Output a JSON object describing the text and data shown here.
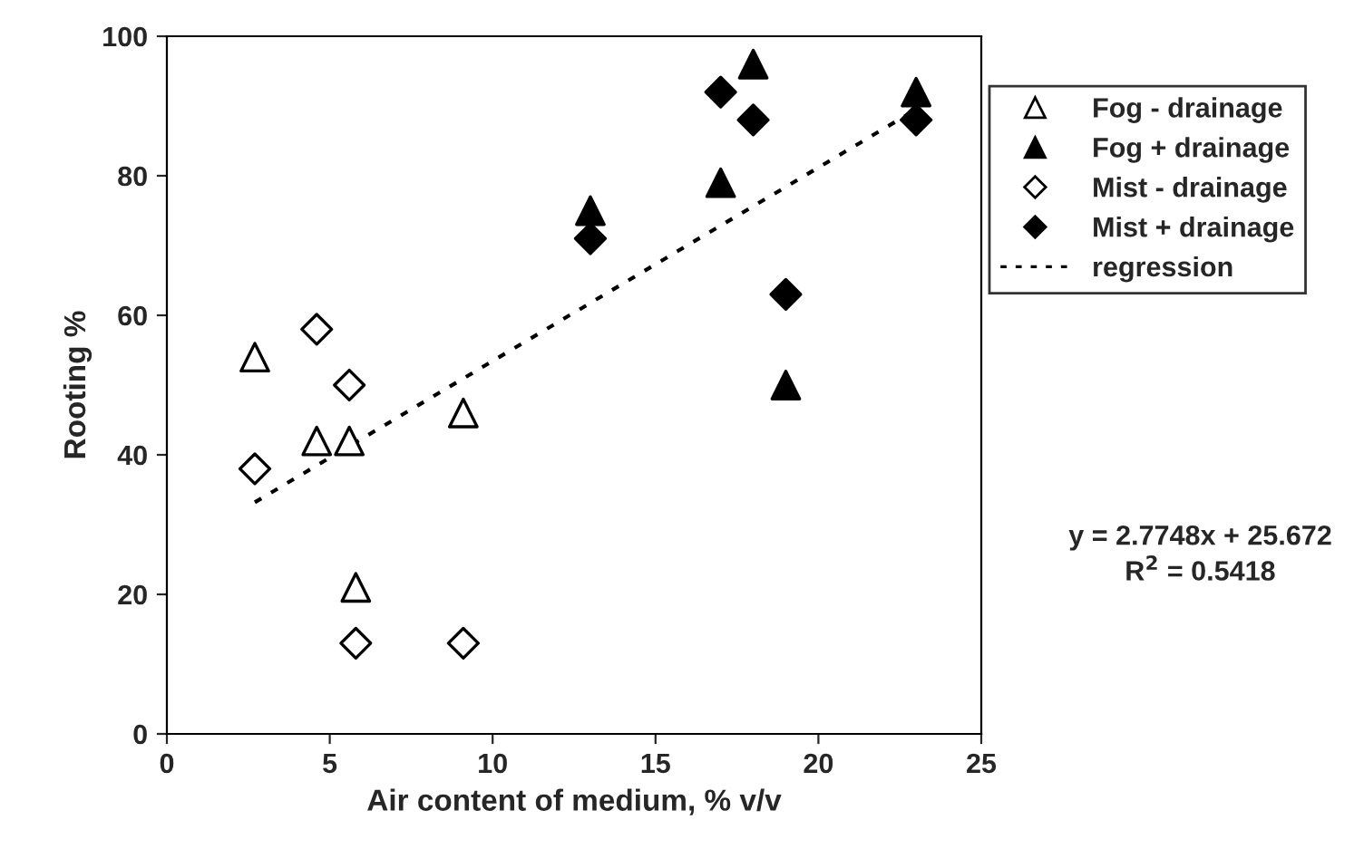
{
  "chart_data": {
    "type": "scatter",
    "xlabel": "Air content of medium, % v/v",
    "ylabel": "Rooting %",
    "xlim": [
      0,
      25
    ],
    "xticks": [
      0,
      5,
      10,
      15,
      20,
      25
    ],
    "ylim": [
      0,
      100
    ],
    "yticks": [
      0,
      20,
      40,
      60,
      80,
      100
    ],
    "grid": false,
    "legend": "right",
    "series": [
      {
        "name": "Fog - drainage",
        "marker": "triangle",
        "color": "#ffffff",
        "x": [
          2.7,
          4.6,
          5.6,
          5.8,
          9.1
        ],
        "values": [
          54,
          42,
          42,
          21,
          46
        ]
      },
      {
        "name": "Fog + drainage",
        "marker": "triangle",
        "color": "#000000",
        "x": [
          13,
          17,
          18,
          19,
          23
        ],
        "values": [
          75,
          79,
          96,
          50,
          92
        ]
      },
      {
        "name": "Mist - drainage",
        "marker": "diamond",
        "color": "#ffffff",
        "x": [
          2.7,
          4.6,
          5.6,
          5.8,
          9.1
        ],
        "values": [
          38,
          58,
          50,
          13,
          13
        ]
      },
      {
        "name": "Mist + drainage",
        "marker": "diamond",
        "color": "#000000",
        "x": [
          13,
          17,
          18,
          19,
          23
        ],
        "values": [
          71,
          92,
          88,
          63,
          88
        ]
      },
      {
        "name": "regression",
        "type": "line",
        "line_style": "dotted",
        "color": "#000000",
        "x": [
          2.7,
          23
        ],
        "values": [
          33.2,
          89.5
        ]
      }
    ],
    "annotations": [
      "y = 2.7748x + 25.672\nR$^{2}$ = 0.5418"
    ]
  }
}
